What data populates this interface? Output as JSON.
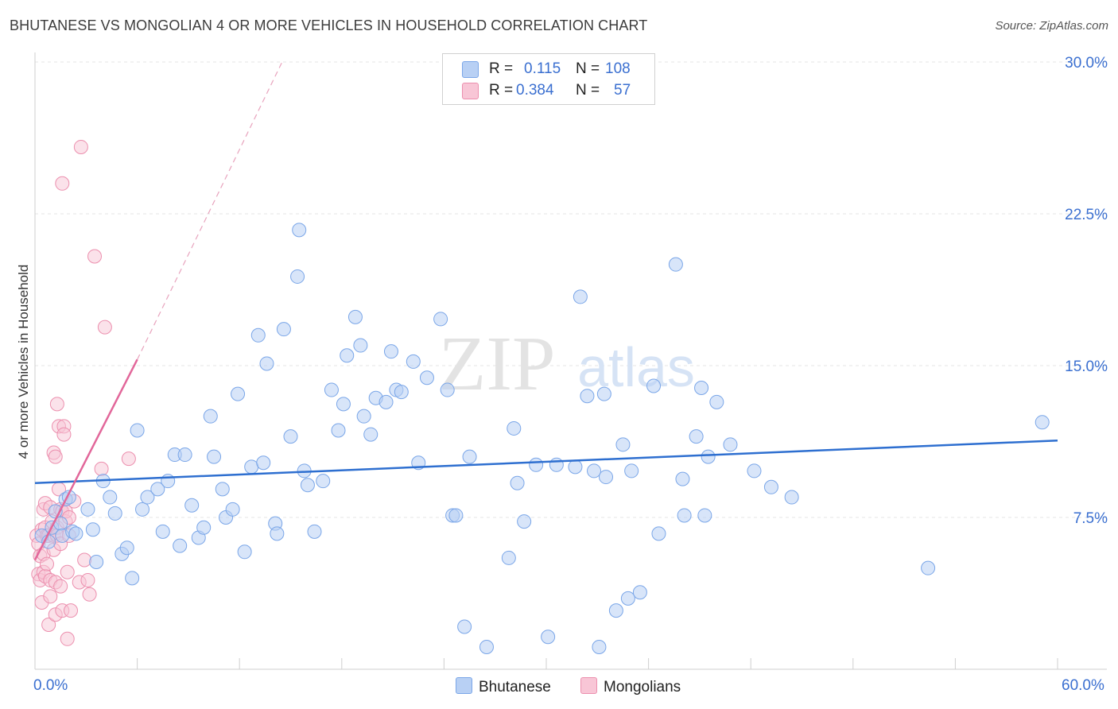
{
  "title": "BHUTANESE VS MONGOLIAN 4 OR MORE VEHICLES IN HOUSEHOLD CORRELATION CHART",
  "source": "Source: ZipAtlas.com",
  "watermark": {
    "zip": "ZIP",
    "atlas": "atlas"
  },
  "legend": {
    "r_label": "R =",
    "n_label": "N =",
    "series": [
      {
        "name": "Bhutanese",
        "r": "0.115",
        "n": "108",
        "color": "#7aa6e8",
        "fill": "#b8d0f4"
      },
      {
        "name": "Mongolians",
        "r": "0.384",
        "n": "57",
        "color": "#ec8fae",
        "fill": "#f8c6d6"
      }
    ]
  },
  "bottom_legend": [
    "Bhutanese",
    "Mongolians"
  ],
  "chart_data": {
    "type": "scatter",
    "title": "BHUTANESE VS MONGOLIAN 4 OR MORE VEHICLES IN HOUSEHOLD CORRELATION CHART",
    "xlabel": "",
    "ylabel": "4 or more Vehicles in Household",
    "xlim": [
      0,
      60
    ],
    "ylim": [
      0,
      30
    ],
    "x_tick_labels": [
      "0.0%",
      "60.0%"
    ],
    "y_ticks": [
      7.5,
      15.0,
      22.5,
      30.0
    ],
    "y_tick_labels": [
      "7.5%",
      "15.0%",
      "22.5%",
      "30.0%"
    ],
    "grid": true,
    "series": [
      {
        "name": "Bhutanese",
        "color": "#5b8fde",
        "trend": {
          "x": [
            0,
            60
          ],
          "y": [
            9.2,
            11.3
          ]
        },
        "points": [
          [
            0.4,
            6.6
          ],
          [
            0.8,
            6.3
          ],
          [
            1.0,
            7.0
          ],
          [
            1.2,
            7.8
          ],
          [
            1.5,
            7.2
          ],
          [
            1.6,
            6.6
          ],
          [
            1.8,
            8.4
          ],
          [
            2.0,
            8.5
          ],
          [
            2.2,
            6.8
          ],
          [
            2.4,
            6.7
          ],
          [
            3.1,
            7.9
          ],
          [
            3.4,
            6.9
          ],
          [
            3.6,
            5.3
          ],
          [
            4.0,
            9.3
          ],
          [
            4.4,
            8.5
          ],
          [
            4.7,
            7.7
          ],
          [
            5.1,
            5.7
          ],
          [
            5.4,
            6.0
          ],
          [
            5.7,
            4.5
          ],
          [
            6.0,
            11.8
          ],
          [
            6.3,
            7.9
          ],
          [
            6.6,
            8.5
          ],
          [
            7.2,
            8.9
          ],
          [
            7.5,
            6.8
          ],
          [
            7.8,
            9.3
          ],
          [
            8.2,
            10.6
          ],
          [
            8.5,
            6.1
          ],
          [
            8.8,
            10.6
          ],
          [
            9.2,
            8.1
          ],
          [
            9.6,
            6.5
          ],
          [
            9.9,
            7.0
          ],
          [
            10.3,
            12.5
          ],
          [
            10.5,
            10.5
          ],
          [
            11.0,
            8.9
          ],
          [
            11.2,
            7.5
          ],
          [
            11.6,
            7.9
          ],
          [
            11.9,
            13.6
          ],
          [
            12.3,
            5.8
          ],
          [
            12.7,
            10.0
          ],
          [
            13.1,
            16.5
          ],
          [
            13.4,
            10.2
          ],
          [
            13.6,
            15.1
          ],
          [
            14.1,
            7.2
          ],
          [
            14.2,
            6.7
          ],
          [
            14.6,
            16.8
          ],
          [
            15.0,
            11.5
          ],
          [
            15.4,
            19.4
          ],
          [
            15.5,
            21.7
          ],
          [
            15.8,
            9.8
          ],
          [
            16.0,
            9.1
          ],
          [
            16.4,
            6.8
          ],
          [
            16.9,
            9.3
          ],
          [
            17.4,
            13.8
          ],
          [
            17.8,
            11.8
          ],
          [
            18.1,
            13.1
          ],
          [
            18.3,
            15.5
          ],
          [
            18.8,
            17.4
          ],
          [
            19.1,
            16.0
          ],
          [
            19.3,
            12.5
          ],
          [
            19.7,
            11.6
          ],
          [
            20.0,
            13.4
          ],
          [
            20.6,
            13.2
          ],
          [
            20.9,
            15.7
          ],
          [
            21.2,
            13.8
          ],
          [
            21.5,
            13.7
          ],
          [
            22.2,
            15.2
          ],
          [
            22.5,
            10.2
          ],
          [
            23.0,
            14.4
          ],
          [
            23.8,
            17.3
          ],
          [
            24.2,
            13.8
          ],
          [
            24.5,
            7.6
          ],
          [
            24.7,
            7.6
          ],
          [
            25.2,
            2.1
          ],
          [
            25.5,
            10.5
          ],
          [
            26.5,
            1.1
          ],
          [
            27.8,
            5.5
          ],
          [
            28.1,
            11.9
          ],
          [
            28.3,
            9.2
          ],
          [
            28.7,
            7.3
          ],
          [
            29.4,
            10.1
          ],
          [
            30.1,
            1.6
          ],
          [
            30.6,
            10.1
          ],
          [
            31.7,
            10.0
          ],
          [
            32.0,
            18.4
          ],
          [
            32.4,
            13.5
          ],
          [
            32.8,
            9.8
          ],
          [
            33.1,
            1.1
          ],
          [
            33.4,
            13.6
          ],
          [
            33.5,
            9.5
          ],
          [
            34.1,
            2.9
          ],
          [
            34.5,
            11.1
          ],
          [
            34.8,
            3.5
          ],
          [
            35.0,
            9.8
          ],
          [
            35.5,
            3.8
          ],
          [
            36.3,
            14.0
          ],
          [
            36.6,
            6.7
          ],
          [
            37.6,
            20.0
          ],
          [
            38.0,
            9.4
          ],
          [
            38.1,
            7.6
          ],
          [
            38.8,
            11.5
          ],
          [
            39.1,
            13.9
          ],
          [
            39.3,
            7.6
          ],
          [
            39.5,
            10.5
          ],
          [
            40.0,
            13.2
          ],
          [
            40.8,
            11.1
          ],
          [
            42.2,
            9.8
          ],
          [
            43.2,
            9.0
          ],
          [
            44.4,
            8.5
          ],
          [
            52.4,
            5.0
          ],
          [
            59.1,
            12.2
          ]
        ]
      },
      {
        "name": "Mongolians",
        "color": "#e8799f",
        "trend": {
          "x": [
            0,
            6.0
          ],
          "y": [
            5.4,
            15.3
          ]
        },
        "trend_extension": {
          "x": [
            6.0,
            14.5
          ],
          "y": [
            15.3,
            30.0
          ]
        },
        "points": [
          [
            0.1,
            6.6
          ],
          [
            0.2,
            4.7
          ],
          [
            0.2,
            6.2
          ],
          [
            0.3,
            5.6
          ],
          [
            0.3,
            4.4
          ],
          [
            0.4,
            3.3
          ],
          [
            0.4,
            6.9
          ],
          [
            0.5,
            5.7
          ],
          [
            0.5,
            4.8
          ],
          [
            0.5,
            7.9
          ],
          [
            0.6,
            4.6
          ],
          [
            0.6,
            8.2
          ],
          [
            0.6,
            7.0
          ],
          [
            0.7,
            5.2
          ],
          [
            0.7,
            6.6
          ],
          [
            0.8,
            2.2
          ],
          [
            0.8,
            6.6
          ],
          [
            0.9,
            3.6
          ],
          [
            0.9,
            8.0
          ],
          [
            0.9,
            4.4
          ],
          [
            1.0,
            7.3
          ],
          [
            1.1,
            6.6
          ],
          [
            1.1,
            5.9
          ],
          [
            1.1,
            10.7
          ],
          [
            1.2,
            2.7
          ],
          [
            1.2,
            10.5
          ],
          [
            1.2,
            4.3
          ],
          [
            1.3,
            7.0
          ],
          [
            1.3,
            6.6
          ],
          [
            1.3,
            13.1
          ],
          [
            1.4,
            8.9
          ],
          [
            1.4,
            12.0
          ],
          [
            1.5,
            6.2
          ],
          [
            1.5,
            7.9
          ],
          [
            1.5,
            4.1
          ],
          [
            1.6,
            24.0
          ],
          [
            1.6,
            7.8
          ],
          [
            1.6,
            2.9
          ],
          [
            1.7,
            12.0
          ],
          [
            1.7,
            11.6
          ],
          [
            1.8,
            7.3
          ],
          [
            1.8,
            7.8
          ],
          [
            1.9,
            4.8
          ],
          [
            1.9,
            1.5
          ],
          [
            2.0,
            7.5
          ],
          [
            2.0,
            6.6
          ],
          [
            2.1,
            2.9
          ],
          [
            2.3,
            8.3
          ],
          [
            2.6,
            4.3
          ],
          [
            2.7,
            25.8
          ],
          [
            2.9,
            5.4
          ],
          [
            3.1,
            4.4
          ],
          [
            3.2,
            3.7
          ],
          [
            3.5,
            20.4
          ],
          [
            3.9,
            9.9
          ],
          [
            4.1,
            16.9
          ],
          [
            5.5,
            10.4
          ]
        ]
      }
    ]
  }
}
